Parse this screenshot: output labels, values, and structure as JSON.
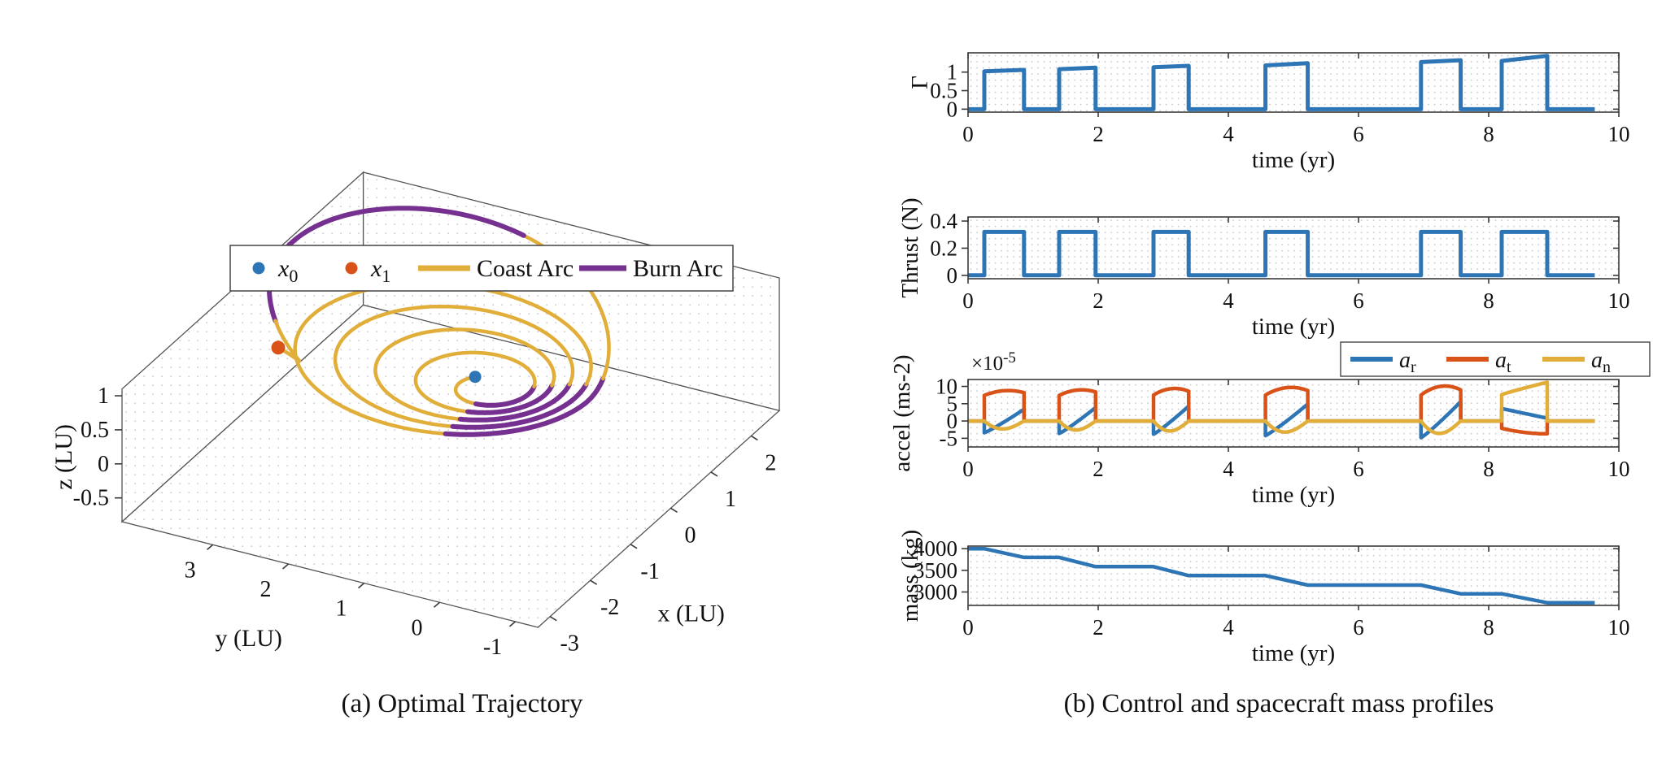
{
  "figure": {
    "captions": {
      "a": "(a) Optimal Trajectory",
      "b": "(b) Control and spacecraft mass profiles"
    }
  },
  "colors": {
    "blue": "#2E75B6",
    "orange": "#D95319",
    "yellow": "#E2AE3A",
    "purple": "#76308F",
    "frame": "#3a3a3a",
    "grid_dot": "#c5c5cb",
    "text": "#111111"
  },
  "chart_data": [
    {
      "id": "trajectory",
      "type": "line3d",
      "caption": "(a) Optimal Trajectory",
      "xlabel": "x (LU)",
      "ylabel": "y (LU)",
      "zlabel": "z (LU)",
      "xticks": [
        -3,
        -2,
        -1,
        0,
        1,
        2
      ],
      "yticks": [
        3,
        2,
        1,
        0,
        -1
      ],
      "zticks": [
        1,
        0.5,
        0,
        -0.5
      ],
      "xlim": [
        -3.3,
        2.7
      ],
      "ylim": [
        -1.3,
        4.2
      ],
      "zlim": [
        -0.85,
        1.1
      ],
      "view": {
        "azimuth_deg": -62,
        "elevation_deg": 31
      },
      "legend": [
        {
          "label": "x_0",
          "marker": "dot",
          "color": "blue"
        },
        {
          "label": "x_1",
          "marker": "dot",
          "color": "orange"
        },
        {
          "label": "Coast Arc",
          "marker": "line",
          "color": "yellow"
        },
        {
          "label": "Burn Arc",
          "marker": "line",
          "color": "purple"
        }
      ],
      "orbit": {
        "focus": [
          0.35,
          1.25
        ],
        "apse_angle_deg": 62,
        "rp0": 0.33,
        "rp_rate": 0.16,
        "ra0": 0.35,
        "ra_rate": 0.62,
        "ra_knee_t": 4.6,
        "ra_rate2": 0.08,
        "turns": 5.3,
        "perigee_burn_centers": [
          0.5,
          1.5,
          2.5,
          3.5,
          4.5
        ],
        "perigee_burn_halfwidth": 0.17,
        "apogee_burn_center": 5.0,
        "apogee_burn_halfwidth": 0.12,
        "z_rise_start": 4.6,
        "z_peak": 0.9,
        "z_peak_t": 5.0,
        "end_blend_start": 5.08,
        "end_point": [
          -0.45,
          3.65,
          0.35
        ]
      },
      "markers": {
        "x0_at": "start",
        "x1_at": "end"
      }
    },
    {
      "id": "gamma",
      "type": "line",
      "ylabel": "Γ",
      "xlabel": "time (yr)",
      "xlim": [
        0,
        10
      ],
      "ylim": [
        -0.08,
        1.52
      ],
      "xticks": [
        0,
        2,
        4,
        6,
        8,
        10
      ],
      "yticks": [
        0,
        0.5,
        1
      ],
      "t_end": 9.63,
      "burns": [
        [
          0.25,
          0.86
        ],
        [
          1.4,
          1.96
        ],
        [
          2.85,
          3.39
        ],
        [
          4.57,
          5.22
        ],
        [
          6.96,
          7.57
        ],
        [
          8.2,
          8.9
        ]
      ],
      "pulse_values": [
        [
          1.02,
          1.06
        ],
        [
          1.08,
          1.12
        ],
        [
          1.13,
          1.17
        ],
        [
          1.18,
          1.24
        ],
        [
          1.27,
          1.32
        ],
        [
          1.3,
          1.44
        ]
      ]
    },
    {
      "id": "thrust",
      "type": "line",
      "ylabel": "Thrust (N)",
      "xlabel": "time (yr)",
      "xlim": [
        0,
        10
      ],
      "ylim": [
        -0.025,
        0.43
      ],
      "xticks": [
        0,
        2,
        4,
        6,
        8,
        10
      ],
      "yticks": [
        0,
        0.2,
        0.4
      ],
      "t_end": 9.63,
      "level": 0.32,
      "burns": [
        [
          0.25,
          0.86
        ],
        [
          1.4,
          1.96
        ],
        [
          2.85,
          3.39
        ],
        [
          4.57,
          5.22
        ],
        [
          6.96,
          7.57
        ],
        [
          8.2,
          8.9
        ]
      ]
    },
    {
      "id": "accel",
      "type": "line",
      "ylabel": "accel (ms-2)",
      "xlabel": "time (yr)",
      "scale_label": {
        "mantissa": "×10",
        "exponent": "-5"
      },
      "xlim": [
        0,
        10
      ],
      "ylim": [
        -7.5,
        12
      ],
      "xticks": [
        0,
        2,
        4,
        6,
        8,
        10
      ],
      "yticks": [
        -5,
        0,
        5,
        10
      ],
      "t_end": 9.63,
      "legend": [
        {
          "label": "a_r",
          "color": "blue"
        },
        {
          "label": "a_t",
          "color": "orange"
        },
        {
          "label": "a_n",
          "color": "yellow"
        }
      ],
      "burns": [
        [
          0.25,
          0.86
        ],
        [
          1.4,
          1.96
        ],
        [
          2.85,
          3.39
        ],
        [
          4.57,
          5.22
        ],
        [
          6.96,
          7.57
        ],
        [
          8.2,
          8.9
        ]
      ],
      "burn_profiles": [
        {
          "ar": [
            -3.4,
            3.4
          ],
          "at": [
            7.4,
            8.8,
            8.2
          ],
          "an": [
            -2.3
          ]
        },
        {
          "ar": [
            -3.6,
            3.9
          ],
          "at": [
            7.4,
            9.0,
            8.4
          ],
          "an": [
            -2.6
          ]
        },
        {
          "ar": [
            -3.8,
            4.3
          ],
          "at": [
            7.5,
            9.4,
            8.6
          ],
          "an": [
            -2.9
          ]
        },
        {
          "ar": [
            -4.2,
            4.9
          ],
          "at": [
            7.5,
            9.7,
            8.8
          ],
          "an": [
            -3.2
          ]
        },
        {
          "ar": [
            -4.8,
            5.6
          ],
          "at": [
            7.5,
            10.1,
            9.0
          ],
          "an": [
            -3.6
          ]
        },
        {
          "ar": [
            3.6,
            0.8
          ],
          "at": [
            -2.1,
            -3.5,
            -3.7
          ],
          "an": [
            7.6,
            11.2
          ]
        }
      ]
    },
    {
      "id": "mass",
      "type": "line",
      "ylabel": "mass (kg)",
      "xlabel": "time (yr)",
      "xlim": [
        0,
        10
      ],
      "ylim": [
        2690,
        4060
      ],
      "xticks": [
        0,
        2,
        4,
        6,
        8,
        10
      ],
      "yticks": [
        3000,
        3500,
        4000
      ],
      "points": [
        [
          0,
          4000
        ],
        [
          0.25,
          4000
        ],
        [
          0.86,
          3800
        ],
        [
          1.4,
          3800
        ],
        [
          1.96,
          3585
        ],
        [
          2.85,
          3585
        ],
        [
          3.39,
          3378
        ],
        [
          4.57,
          3378
        ],
        [
          5.22,
          3160
        ],
        [
          6.96,
          3160
        ],
        [
          7.57,
          2958
        ],
        [
          8.2,
          2958
        ],
        [
          8.9,
          2752
        ],
        [
          9.63,
          2752
        ]
      ]
    }
  ]
}
